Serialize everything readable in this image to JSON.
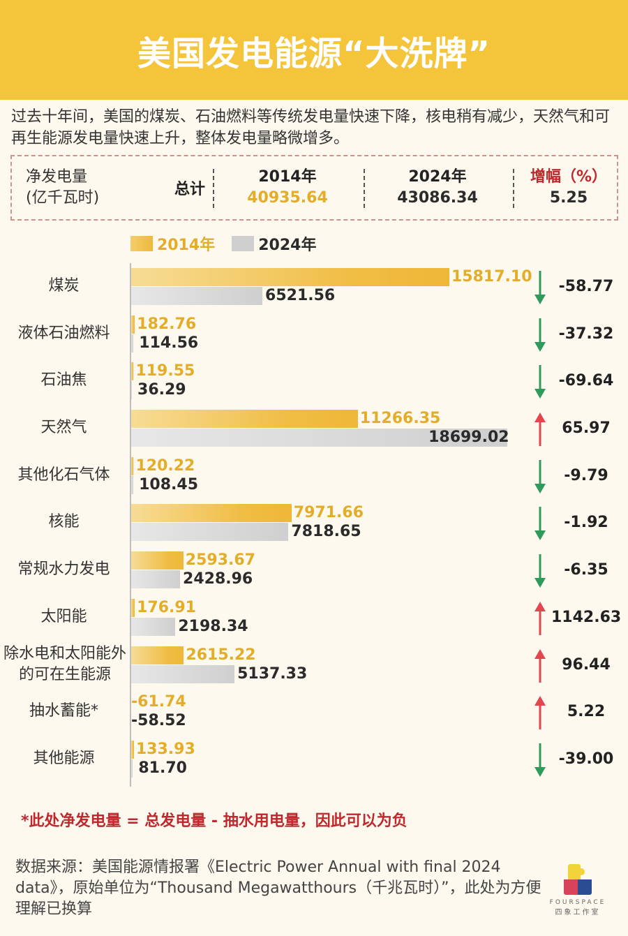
{
  "header": {
    "title": "美国发电能源“大洗牌”"
  },
  "intro": "过去十年间，美国的煤炭、石油燃料等传统发电量快速下降，核电稍有减少，天然气和可再生能源发电量快速上升，整体发电量略微增多。",
  "summary": {
    "label_line1": "净发电量",
    "label_line2": "(亿千瓦时)",
    "total_label": "总计",
    "y2014_label": "2014年",
    "y2014_value": "40935.64",
    "y2024_label": "2024年",
    "y2024_value": "43086.34",
    "change_label": "增幅（%）",
    "change_value": "5.25"
  },
  "legend": {
    "s2014": "2014年",
    "s2024": "2024年"
  },
  "colors": {
    "header": "#f4c43a",
    "s2014": "#efb93a",
    "s2024": "#cfcfcf",
    "up": "#e0474f",
    "down": "#2e9a5c",
    "note": "#c0282d",
    "background": "#fdf9ee"
  },
  "rows": [
    {
      "category": "煤炭",
      "v2014": "15817.10",
      "v2024": "6521.56",
      "direction": "down",
      "change": "-58.77"
    },
    {
      "category": "液体石油燃料",
      "v2014": "182.76",
      "v2024": "114.56",
      "direction": "down",
      "change": "-37.32"
    },
    {
      "category": "石油焦",
      "v2014": "119.55",
      "v2024": "36.29",
      "direction": "down",
      "change": "-69.64"
    },
    {
      "category": "天然气",
      "v2014": "11266.35",
      "v2024": "18699.02",
      "direction": "up",
      "change": "65.97"
    },
    {
      "category": "其他化石气体",
      "v2014": "120.22",
      "v2024": "108.45",
      "direction": "down",
      "change": "-9.79"
    },
    {
      "category": "核能",
      "v2014": "7971.66",
      "v2024": "7818.65",
      "direction": "down",
      "change": "-1.92"
    },
    {
      "category": "常规水力发电",
      "v2014": "2593.67",
      "v2024": "2428.96",
      "direction": "down",
      "change": "-6.35"
    },
    {
      "category": "太阳能",
      "v2014": "176.91",
      "v2024": "2198.34",
      "direction": "up",
      "change": "1142.63"
    },
    {
      "category": "除水电和太阳能外的可在生能源",
      "v2014": "2615.22",
      "v2024": "5137.33",
      "direction": "up",
      "change": "96.44"
    },
    {
      "category": "抽水蓄能*",
      "v2014": "-61.74",
      "v2024": "-58.52",
      "direction": "up",
      "change": "5.22"
    },
    {
      "category": "其他能源",
      "v2014": "133.93",
      "v2024": "81.70",
      "direction": "down",
      "change": "-39.00"
    }
  ],
  "note": "*此处净发电量 = 总发电量 - 抽水用电量，因此可以为负",
  "source": "数据来源：美国能源情报署《Electric Power Annual with final 2024 data》，原始单位为“Thousand Megawatthours（千兆瓦时）”，此处为方便理解已换算",
  "logo": {
    "name": "FOURSPACE",
    "cn": "四象工作室"
  },
  "chart_data": {
    "type": "bar",
    "orientation": "horizontal",
    "title": "美国发电能源“大洗牌”",
    "subtitle": "净发电量（亿千瓦时）",
    "categories": [
      "煤炭",
      "液体石油燃料",
      "石油焦",
      "天然气",
      "其他化石气体",
      "核能",
      "常规水力发电",
      "太阳能",
      "除水电和太阳能外的可在生能源",
      "抽水蓄能*",
      "其他能源"
    ],
    "series": [
      {
        "name": "2014年",
        "values": [
          15817.1,
          182.76,
          119.55,
          11266.35,
          120.22,
          7971.66,
          2593.67,
          176.91,
          2615.22,
          -61.74,
          133.93
        ]
      },
      {
        "name": "2024年",
        "values": [
          6521.56,
          114.56,
          36.29,
          18699.02,
          108.45,
          7818.65,
          2428.96,
          2198.34,
          5137.33,
          -58.52,
          81.7
        ]
      }
    ],
    "change_pct": [
      -58.77,
      -37.32,
      -69.64,
      65.97,
      -9.79,
      -1.92,
      -6.35,
      1142.63,
      96.44,
      5.22,
      -39.0
    ],
    "totals": {
      "2014": 40935.64,
      "2024": 43086.34,
      "change_pct": 5.25
    },
    "xlabel": "",
    "ylabel": "",
    "grid": false,
    "legend_position": "top-left"
  }
}
